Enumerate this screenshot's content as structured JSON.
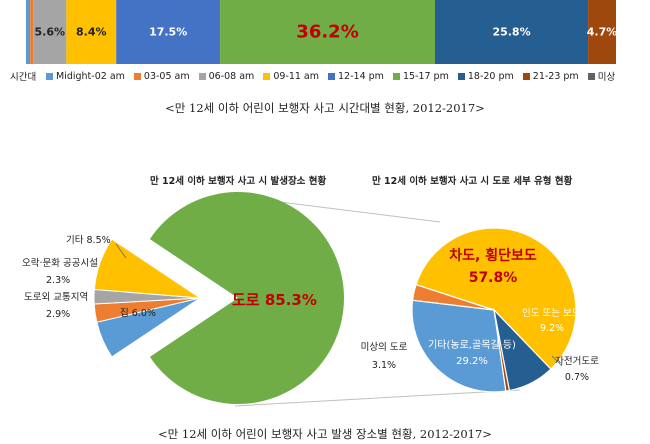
{
  "captions": {
    "time": "<만 12세 이하 어린이 보행자 사고 시간대별 현황, 2012-2017>",
    "location": "<만 12세 이하 어린이 보행자 사고 발생 장소별 현황, 2012-2017>"
  },
  "chart_data": [
    {
      "type": "bar",
      "orientation": "horizontal-stacked",
      "axis_name": "시간대",
      "unit": "%",
      "legend_placement": "bottom",
      "series": [
        {
          "name": "Midight-02 am",
          "value": 0.7,
          "color": "#5b9bd5",
          "label": ""
        },
        {
          "name": "03-05 am",
          "value": 0.5,
          "color": "#ed7d31",
          "label": ""
        },
        {
          "name": "06-08 am",
          "value": 5.6,
          "color": "#a5a5a5",
          "label": "5.6%"
        },
        {
          "name": "09-11 am",
          "value": 8.4,
          "color": "#ffc000",
          "label": "8.4%"
        },
        {
          "name": "12-14 pm",
          "value": 17.5,
          "color": "#4472c4",
          "label": "17.5%"
        },
        {
          "name": "15-17 pm",
          "value": 36.2,
          "color": "#70ad47",
          "label": "36.2%"
        },
        {
          "name": "18-20 pm",
          "value": 25.8,
          "color": "#255e91",
          "label": "25.8%"
        },
        {
          "name": "21-23 pm",
          "value": 4.7,
          "color": "#9e480e",
          "label": "4.7%"
        },
        {
          "name": "미상",
          "value": 0.0,
          "color": "#636363",
          "label": ""
        }
      ]
    },
    {
      "type": "pie",
      "title": "만 12세 이하 보행자 사고 시 발생장소 현황",
      "slices": [
        {
          "name": "도로",
          "value": 85.3,
          "label": "도로 85.3%",
          "color": "#70ad47"
        },
        {
          "name": "집",
          "value": 6.0,
          "label": "집 6.0%",
          "color": "#5b9bd5"
        },
        {
          "name": "도로외 교통지역",
          "value": 2.9,
          "label": "도로외 교통지역",
          "value_label": "2.9%",
          "color": "#ed7d31"
        },
        {
          "name": "오락·문화 공공시설",
          "value": 2.3,
          "label": "오락·문화 공공시설",
          "value_label": "2.3%",
          "color": "#a5a5a5"
        },
        {
          "name": "기타",
          "value": 8.5,
          "label": "기타 8.5%",
          "color": "#ffc000"
        }
      ]
    },
    {
      "type": "pie",
      "title": "만 12세 이하 보행자 사고 시 도로 세부 유형 현황",
      "slices": [
        {
          "name": "차도, 횡단보도",
          "value": 57.8,
          "label": "차도, 횡단보도",
          "value_label": "57.8%",
          "color": "#ffc000"
        },
        {
          "name": "인도 또는 보도",
          "value": 9.2,
          "label": "인도 또는 보도",
          "value_label": "9.2%",
          "color": "#255e91"
        },
        {
          "name": "자전거도로",
          "value": 0.7,
          "label": "자전거도로",
          "value_label": "0.7%",
          "color": "#9e480e"
        },
        {
          "name": "기타(농로,골목길 등)",
          "value": 29.2,
          "label": "기타(농로,골목길 등)",
          "value_label": "29.2%",
          "color": "#5b9bd5"
        },
        {
          "name": "미상의 도로",
          "value": 3.1,
          "label": "미상의 도로",
          "value_label": "3.1%",
          "color": "#ed7d31"
        }
      ]
    }
  ]
}
